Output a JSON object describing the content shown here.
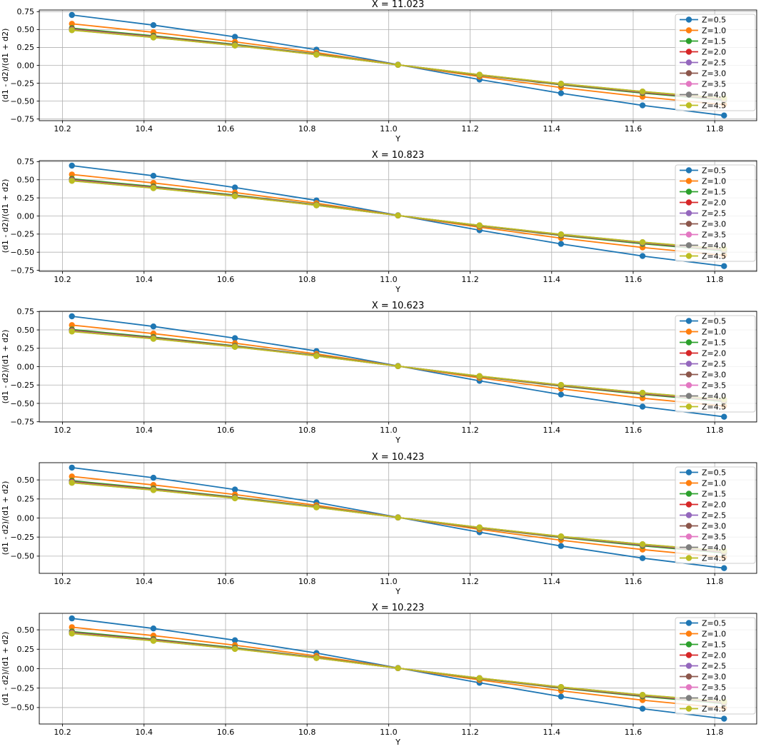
{
  "figure": {
    "background": "#ffffff",
    "grid_color": "#b0b0b0",
    "axes_edge_color": "#000000",
    "legend_edge_color": "#cccccc",
    "legend_face_alpha": 0.8,
    "palette": [
      "#1f77b4",
      "#ff7f0e",
      "#2ca02c",
      "#d62728",
      "#9467bd",
      "#8c564b",
      "#e377c2",
      "#7f7f7f",
      "#bcbd22"
    ]
  },
  "chart_data": [
    {
      "type": "line",
      "title": "X = 11.023",
      "xlabel": "Y",
      "ylabel": "(d1 - d2)/(d1 + d2)",
      "grid": true,
      "legend_position": "upper right",
      "x": [
        10.223,
        10.423,
        10.623,
        10.823,
        11.023,
        11.223,
        11.423,
        11.623,
        11.823
      ],
      "xlim": [
        10.143,
        11.903
      ],
      "ylim": [
        -0.773,
        0.773
      ],
      "xticks": [
        10.2,
        10.4,
        10.6,
        10.8,
        11.0,
        11.2,
        11.4,
        11.6,
        11.8
      ],
      "yticks": [
        -0.75,
        -0.5,
        -0.25,
        0,
        0.25,
        0.5,
        0.75
      ],
      "series": [
        {
          "name": "Z=0.5",
          "color": "#1f77b4",
          "values": [
            0.703,
            0.562,
            0.398,
            0.218,
            0.01,
            -0.198,
            -0.39,
            -0.56,
            -0.7
          ]
        },
        {
          "name": "Z=1.0",
          "color": "#ff7f0e",
          "values": [
            0.58,
            0.462,
            0.328,
            0.178,
            0.008,
            -0.158,
            -0.31,
            -0.44,
            -0.55
          ]
        },
        {
          "name": "Z=1.5",
          "color": "#2ca02c",
          "values": [
            0.52,
            0.412,
            0.292,
            0.158,
            0.007,
            -0.14,
            -0.272,
            -0.388,
            -0.487
          ]
        },
        {
          "name": "Z=2.0",
          "color": "#d62728",
          "values": [
            0.507,
            0.401,
            0.284,
            0.154,
            0.007,
            -0.136,
            -0.264,
            -0.377,
            -0.474
          ]
        },
        {
          "name": "Z=2.5",
          "color": "#9467bd",
          "values": [
            0.501,
            0.396,
            0.281,
            0.152,
            0.007,
            -0.134,
            -0.261,
            -0.373,
            -0.468
          ]
        },
        {
          "name": "Z=3.0",
          "color": "#8c564b",
          "values": [
            0.498,
            0.394,
            0.279,
            0.151,
            0.007,
            -0.133,
            -0.259,
            -0.37,
            -0.464
          ]
        },
        {
          "name": "Z=3.5",
          "color": "#e377c2",
          "values": [
            0.495,
            0.392,
            0.278,
            0.15,
            0.007,
            -0.132,
            -0.258,
            -0.368,
            -0.462
          ]
        },
        {
          "name": "Z=4.0",
          "color": "#7f7f7f",
          "values": [
            0.493,
            0.39,
            0.277,
            0.15,
            0.007,
            -0.132,
            -0.257,
            -0.367,
            -0.46
          ]
        },
        {
          "name": "Z=4.5",
          "color": "#bcbd22",
          "values": [
            0.491,
            0.389,
            0.276,
            0.149,
            0.007,
            -0.131,
            -0.256,
            -0.366,
            -0.459
          ]
        }
      ]
    },
    {
      "type": "line",
      "title": "X = 10.823",
      "xlabel": "Y",
      "ylabel": "(d1 - d2)/(d1 + d2)",
      "grid": true,
      "legend_position": "upper right",
      "x": [
        10.223,
        10.423,
        10.623,
        10.823,
        11.023,
        11.223,
        11.423,
        11.623,
        11.823
      ],
      "xlim": [
        10.143,
        11.903
      ],
      "ylim": [
        -0.764,
        0.764
      ],
      "xticks": [
        10.2,
        10.4,
        10.6,
        10.8,
        11.0,
        11.2,
        11.4,
        11.6,
        11.8
      ],
      "yticks": [
        -0.75,
        -0.5,
        -0.25,
        0,
        0.25,
        0.5,
        0.75
      ],
      "series": [
        {
          "name": "Z=0.5",
          "color": "#1f77b4",
          "values": [
            0.695,
            0.555,
            0.393,
            0.215,
            0.01,
            -0.196,
            -0.385,
            -0.553,
            -0.692
          ]
        },
        {
          "name": "Z=1.0",
          "color": "#ff7f0e",
          "values": [
            0.573,
            0.456,
            0.324,
            0.176,
            0.008,
            -0.156,
            -0.306,
            -0.435,
            -0.543
          ]
        },
        {
          "name": "Z=1.5",
          "color": "#2ca02c",
          "values": [
            0.514,
            0.407,
            0.289,
            0.156,
            0.007,
            -0.138,
            -0.269,
            -0.383,
            -0.481
          ]
        },
        {
          "name": "Z=2.0",
          "color": "#d62728",
          "values": [
            0.501,
            0.396,
            0.281,
            0.152,
            0.007,
            -0.134,
            -0.261,
            -0.372,
            -0.468
          ]
        },
        {
          "name": "Z=2.5",
          "color": "#9467bd",
          "values": [
            0.495,
            0.391,
            0.278,
            0.15,
            0.007,
            -0.132,
            -0.258,
            -0.369,
            -0.462
          ]
        },
        {
          "name": "Z=3.0",
          "color": "#8c564b",
          "values": [
            0.492,
            0.389,
            0.276,
            0.149,
            0.007,
            -0.131,
            -0.256,
            -0.366,
            -0.458
          ]
        },
        {
          "name": "Z=3.5",
          "color": "#e377c2",
          "values": [
            0.489,
            0.387,
            0.275,
            0.148,
            0.007,
            -0.13,
            -0.255,
            -0.364,
            -0.456
          ]
        },
        {
          "name": "Z=4.0",
          "color": "#7f7f7f",
          "values": [
            0.487,
            0.385,
            0.274,
            0.148,
            0.007,
            -0.13,
            -0.254,
            -0.363,
            -0.454
          ]
        },
        {
          "name": "Z=4.5",
          "color": "#bcbd22",
          "values": [
            0.485,
            0.384,
            0.273,
            0.147,
            0.007,
            -0.129,
            -0.253,
            -0.362,
            -0.453
          ]
        }
      ]
    },
    {
      "type": "line",
      "title": "X = 10.623",
      "xlabel": "Y",
      "ylabel": "(d1 - d2)/(d1 + d2)",
      "grid": true,
      "legend_position": "upper right",
      "x": [
        10.223,
        10.423,
        10.623,
        10.823,
        11.023,
        11.223,
        11.423,
        11.623,
        11.823
      ],
      "xlim": [
        10.143,
        11.903
      ],
      "ylim": [
        -0.753,
        0.753
      ],
      "xticks": [
        10.2,
        10.4,
        10.6,
        10.8,
        11.0,
        11.2,
        11.4,
        11.6,
        11.8
      ],
      "yticks": [
        -0.75,
        -0.5,
        -0.25,
        0,
        0.25,
        0.5,
        0.75
      ],
      "series": [
        {
          "name": "Z=0.5",
          "color": "#1f77b4",
          "values": [
            0.685,
            0.547,
            0.388,
            0.212,
            0.01,
            -0.193,
            -0.38,
            -0.545,
            -0.682
          ]
        },
        {
          "name": "Z=1.0",
          "color": "#ff7f0e",
          "values": [
            0.565,
            0.45,
            0.319,
            0.173,
            0.008,
            -0.154,
            -0.302,
            -0.429,
            -0.536
          ]
        },
        {
          "name": "Z=1.5",
          "color": "#2ca02c",
          "values": [
            0.506,
            0.401,
            0.284,
            0.154,
            0.007,
            -0.136,
            -0.265,
            -0.378,
            -0.474
          ]
        },
        {
          "name": "Z=2.0",
          "color": "#d62728",
          "values": [
            0.494,
            0.391,
            0.277,
            0.15,
            0.007,
            -0.132,
            -0.257,
            -0.367,
            -0.462
          ]
        },
        {
          "name": "Z=2.5",
          "color": "#9467bd",
          "values": [
            0.488,
            0.386,
            0.274,
            0.148,
            0.007,
            -0.131,
            -0.254,
            -0.363,
            -0.456
          ]
        },
        {
          "name": "Z=3.0",
          "color": "#8c564b",
          "values": [
            0.485,
            0.384,
            0.272,
            0.147,
            0.007,
            -0.13,
            -0.252,
            -0.36,
            -0.452
          ]
        },
        {
          "name": "Z=3.5",
          "color": "#e377c2",
          "values": [
            0.482,
            0.382,
            0.271,
            0.146,
            0.007,
            -0.129,
            -0.251,
            -0.358,
            -0.45
          ]
        },
        {
          "name": "Z=4.0",
          "color": "#7f7f7f",
          "values": [
            0.48,
            0.38,
            0.27,
            0.146,
            0.007,
            -0.129,
            -0.25,
            -0.357,
            -0.448
          ]
        },
        {
          "name": "Z=4.5",
          "color": "#bcbd22",
          "values": [
            0.478,
            0.379,
            0.269,
            0.145,
            0.007,
            -0.128,
            -0.249,
            -0.356,
            -0.447
          ]
        }
      ]
    },
    {
      "type": "line",
      "title": "X = 10.423",
      "xlabel": "Y",
      "ylabel": "(d1 - d2)/(d1 + d2)",
      "grid": true,
      "legend_position": "upper right",
      "x": [
        10.223,
        10.423,
        10.623,
        10.823,
        11.023,
        11.223,
        11.423,
        11.623,
        11.823
      ],
      "xlim": [
        10.143,
        11.903
      ],
      "ylim": [
        -0.726,
        0.726
      ],
      "xticks": [
        10.2,
        10.4,
        10.6,
        10.8,
        11.0,
        11.2,
        11.4,
        11.6,
        11.8
      ],
      "yticks": [
        -0.5,
        -0.25,
        0,
        0.25,
        0.5
      ],
      "series": [
        {
          "name": "Z=0.5",
          "color": "#1f77b4",
          "values": [
            0.661,
            0.528,
            0.374,
            0.205,
            0.009,
            -0.186,
            -0.367,
            -0.526,
            -0.658
          ]
        },
        {
          "name": "Z=1.0",
          "color": "#ff7f0e",
          "values": [
            0.545,
            0.434,
            0.308,
            0.167,
            0.008,
            -0.149,
            -0.291,
            -0.414,
            -0.517
          ]
        },
        {
          "name": "Z=1.5",
          "color": "#2ca02c",
          "values": [
            0.489,
            0.387,
            0.274,
            0.149,
            0.007,
            -0.132,
            -0.256,
            -0.365,
            -0.458
          ]
        },
        {
          "name": "Z=2.0",
          "color": "#d62728",
          "values": [
            0.477,
            0.377,
            0.267,
            0.145,
            0.007,
            -0.128,
            -0.248,
            -0.354,
            -0.446
          ]
        },
        {
          "name": "Z=2.5",
          "color": "#9467bd",
          "values": [
            0.471,
            0.372,
            0.264,
            0.143,
            0.007,
            -0.126,
            -0.245,
            -0.351,
            -0.44
          ]
        },
        {
          "name": "Z=3.0",
          "color": "#8c564b",
          "values": [
            0.468,
            0.37,
            0.262,
            0.142,
            0.007,
            -0.125,
            -0.243,
            -0.348,
            -0.436
          ]
        },
        {
          "name": "Z=3.5",
          "color": "#e377c2",
          "values": [
            0.465,
            0.368,
            0.261,
            0.141,
            0.007,
            -0.124,
            -0.243,
            -0.346,
            -0.434
          ]
        },
        {
          "name": "Z=4.0",
          "color": "#7f7f7f",
          "values": [
            0.463,
            0.367,
            0.26,
            0.141,
            0.007,
            -0.124,
            -0.242,
            -0.345,
            -0.432
          ]
        },
        {
          "name": "Z=4.5",
          "color": "#bcbd22",
          "values": [
            0.462,
            0.366,
            0.259,
            0.14,
            0.007,
            -0.123,
            -0.241,
            -0.344,
            -0.431
          ]
        }
      ]
    },
    {
      "type": "line",
      "title": "X = 10.223",
      "xlabel": "Y",
      "ylabel": "(d1 - d2)/(d1 + d2)",
      "grid": true,
      "legend_position": "upper right",
      "x": [
        10.223,
        10.423,
        10.623,
        10.823,
        11.023,
        11.223,
        11.423,
        11.623,
        11.823
      ],
      "xlim": [
        10.143,
        11.903
      ],
      "ylim": [
        -0.712,
        0.712
      ],
      "xticks": [
        10.2,
        10.4,
        10.6,
        10.8,
        11.0,
        11.2,
        11.4,
        11.6,
        11.8
      ],
      "yticks": [
        -0.5,
        -0.25,
        0,
        0.25,
        0.5
      ],
      "series": [
        {
          "name": "Z=0.5",
          "color": "#1f77b4",
          "values": [
            0.647,
            0.517,
            0.366,
            0.201,
            0.009,
            -0.182,
            -0.359,
            -0.515,
            -0.644
          ]
        },
        {
          "name": "Z=1.0",
          "color": "#ff7f0e",
          "values": [
            0.534,
            0.425,
            0.302,
            0.164,
            0.007,
            -0.145,
            -0.285,
            -0.405,
            -0.506
          ]
        },
        {
          "name": "Z=1.5",
          "color": "#2ca02c",
          "values": [
            0.478,
            0.379,
            0.269,
            0.145,
            0.006,
            -0.129,
            -0.25,
            -0.357,
            -0.448
          ]
        },
        {
          "name": "Z=2.0",
          "color": "#d62728",
          "values": [
            0.466,
            0.369,
            0.261,
            0.142,
            0.006,
            -0.125,
            -0.243,
            -0.347,
            -0.436
          ]
        },
        {
          "name": "Z=2.5",
          "color": "#9467bd",
          "values": [
            0.461,
            0.364,
            0.259,
            0.14,
            0.006,
            -0.123,
            -0.24,
            -0.343,
            -0.431
          ]
        },
        {
          "name": "Z=3.0",
          "color": "#8c564b",
          "values": [
            0.458,
            0.362,
            0.257,
            0.139,
            0.006,
            -0.122,
            -0.238,
            -0.34,
            -0.427
          ]
        },
        {
          "name": "Z=3.5",
          "color": "#e377c2",
          "values": [
            0.455,
            0.361,
            0.256,
            0.138,
            0.006,
            -0.121,
            -0.237,
            -0.339,
            -0.425
          ]
        },
        {
          "name": "Z=4.0",
          "color": "#7f7f7f",
          "values": [
            0.454,
            0.359,
            0.255,
            0.138,
            0.006,
            -0.121,
            -0.236,
            -0.338,
            -0.423
          ]
        },
        {
          "name": "Z=4.5",
          "color": "#bcbd22",
          "values": [
            0.452,
            0.358,
            0.254,
            0.137,
            0.006,
            -0.121,
            -0.236,
            -0.337,
            -0.422
          ]
        }
      ]
    }
  ]
}
